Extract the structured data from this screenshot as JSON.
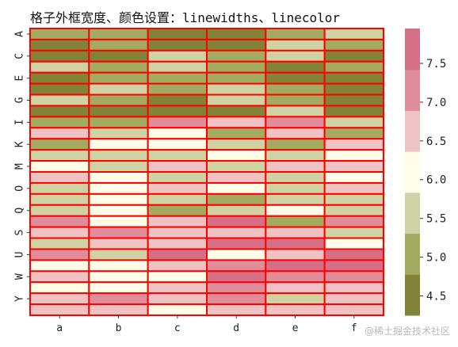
{
  "chart_data": {
    "type": "heatmap",
    "title": "格子外框宽度、颜色设置：linewidths、linecolor",
    "x_categories": [
      "a",
      "b",
      "c",
      "d",
      "e",
      "f"
    ],
    "y_categories": [
      "A",
      "B",
      "C",
      "D",
      "E",
      "F",
      "G",
      "H",
      "I",
      "J",
      "K",
      "L",
      "M",
      "N",
      "O",
      "P",
      "Q",
      "R",
      "S",
      "T",
      "U",
      "V",
      "W",
      "X",
      "Y",
      "Z"
    ],
    "y_tick_labels_shown": [
      "A",
      "C",
      "E",
      "G",
      "I",
      "K",
      "M",
      "O",
      "Q",
      "S",
      "U",
      "W",
      "Y"
    ],
    "values": [
      [
        5.0,
        5.0,
        4.4,
        4.4,
        5.0,
        5.7
      ],
      [
        4.5,
        5.0,
        4.5,
        4.5,
        5.7,
        5.0
      ],
      [
        4.5,
        4.5,
        5.7,
        5.0,
        5.5,
        4.5
      ],
      [
        5.5,
        5.0,
        5.7,
        5.0,
        4.5,
        5.0
      ],
      [
        4.5,
        5.0,
        5.0,
        5.0,
        4.5,
        4.5
      ],
      [
        4.5,
        5.5,
        5.0,
        5.5,
        5.0,
        4.5
      ],
      [
        5.5,
        5.0,
        4.5,
        5.5,
        5.0,
        4.5
      ],
      [
        4.5,
        4.5,
        4.5,
        4.5,
        5.5,
        4.5
      ],
      [
        5.0,
        5.0,
        7.2,
        6.6,
        7.2,
        5.7
      ],
      [
        6.6,
        5.7,
        6.0,
        5.0,
        6.6,
        5.0
      ],
      [
        5.0,
        6.0,
        6.0,
        5.7,
        5.0,
        6.6
      ],
      [
        5.7,
        5.7,
        5.7,
        6.0,
        5.7,
        6.0
      ],
      [
        6.0,
        5.7,
        6.6,
        5.7,
        6.6,
        6.6
      ],
      [
        6.6,
        6.0,
        5.7,
        6.6,
        5.7,
        6.0
      ],
      [
        5.7,
        6.0,
        6.6,
        6.0,
        5.7,
        6.6
      ],
      [
        5.7,
        6.0,
        5.7,
        5.0,
        5.7,
        5.7
      ],
      [
        5.5,
        6.0,
        5.0,
        5.7,
        6.0,
        5.7
      ],
      [
        7.2,
        6.0,
        6.6,
        7.5,
        5.0,
        7.2
      ],
      [
        6.6,
        7.2,
        6.6,
        6.6,
        6.6,
        5.7
      ],
      [
        5.7,
        6.6,
        6.6,
        7.5,
        7.5,
        6.0
      ],
      [
        7.2,
        5.7,
        7.7,
        6.0,
        6.6,
        7.5
      ],
      [
        6.0,
        6.0,
        6.6,
        7.2,
        7.5,
        7.5
      ],
      [
        6.6,
        6.0,
        6.0,
        7.5,
        7.2,
        7.2
      ],
      [
        6.0,
        6.0,
        6.6,
        7.2,
        6.6,
        6.6
      ],
      [
        6.6,
        7.2,
        6.6,
        7.2,
        5.7,
        6.6
      ],
      [
        6.6,
        6.6,
        6.0,
        6.6,
        6.6,
        6.6
      ]
    ],
    "colormap": [
      "#828336",
      "#a3ab61",
      "#cfd3a3",
      "#fffde8",
      "#efc3c4",
      "#e08d9b",
      "#d56f86"
    ],
    "vmin": 4.25,
    "vmax": 7.95,
    "colorbar_ticks": [
      4.5,
      5.0,
      5.5,
      6.0,
      6.5,
      7.0,
      7.5
    ],
    "colorbar_tick_labels": [
      "4.5",
      "5.0",
      "5.5",
      "6.0",
      "6.5",
      "7.0",
      "7.5"
    ],
    "linecolor": "#ff0000",
    "linewidths": 2
  },
  "watermark": "@稀土掘金技术社区"
}
